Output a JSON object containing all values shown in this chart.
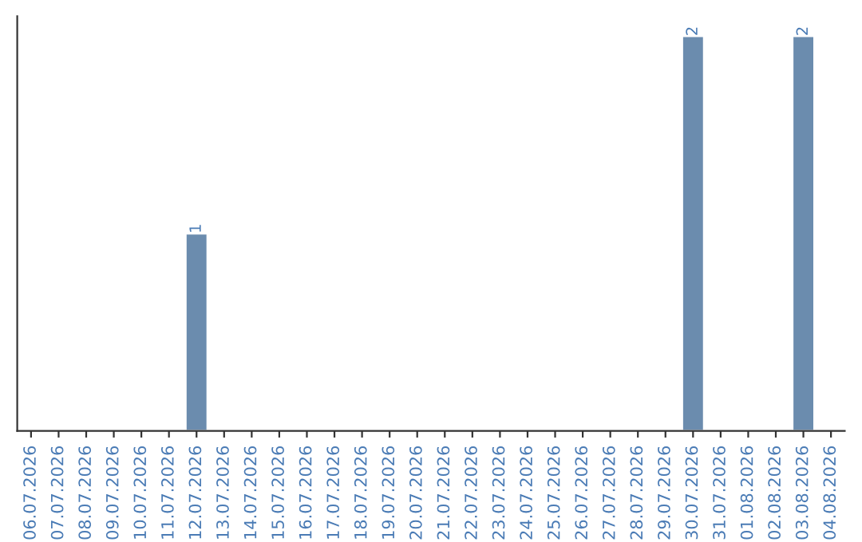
{
  "chart_data": {
    "type": "bar",
    "categories": [
      "06.07.2026",
      "07.07.2026",
      "08.07.2026",
      "09.07.2026",
      "10.07.2026",
      "11.07.2026",
      "12.07.2026",
      "13.07.2026",
      "14.07.2026",
      "15.07.2026",
      "16.07.2026",
      "17.07.2026",
      "18.07.2026",
      "19.07.2026",
      "20.07.2026",
      "21.07.2026",
      "22.07.2026",
      "23.07.2026",
      "24.07.2026",
      "25.07.2026",
      "26.07.2026",
      "27.07.2026",
      "28.07.2026",
      "29.07.2026",
      "30.07.2026",
      "31.07.2026",
      "01.08.2026",
      "02.08.2026",
      "03.08.2026",
      "04.08.2026"
    ],
    "values": [
      0,
      0,
      0,
      0,
      0,
      0,
      1,
      0,
      0,
      0,
      0,
      0,
      0,
      0,
      0,
      0,
      0,
      0,
      0,
      0,
      0,
      0,
      0,
      0,
      2,
      0,
      0,
      0,
      2,
      0
    ],
    "value_labels": [
      null,
      null,
      null,
      null,
      null,
      null,
      "1",
      null,
      null,
      null,
      null,
      null,
      null,
      null,
      null,
      null,
      null,
      null,
      null,
      null,
      null,
      null,
      null,
      null,
      "2",
      null,
      null,
      null,
      "2",
      null
    ],
    "color": "#6b8cae",
    "tick_labels": "x",
    "grid": false,
    "legend": false
  }
}
